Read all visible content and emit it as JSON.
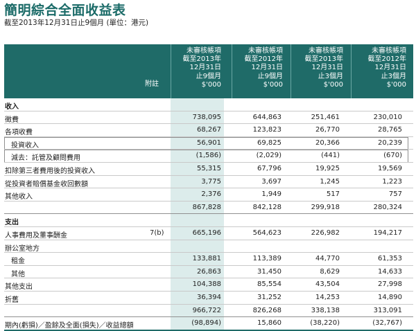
{
  "title": "簡明綜合全面收益表",
  "subtitle": "截至2013年12月31日止9個月 (單位：港元)",
  "header": {
    "note_label": "附註",
    "columns": [
      "未審核帳項\n截至2013年\n12月31日\n止9個月\n$'000",
      "未審核帳項\n截至2012年\n12月31日\n止9個月\n$'000",
      "未審核帳項\n截至2013年\n12月31日\n止3個月\n$'000",
      "未審核帳項\n截至2012年\n12月31日\n止3個月\n$'000"
    ]
  },
  "rows": [
    {
      "label": "收入",
      "note": "",
      "values": [
        "",
        "",
        "",
        ""
      ],
      "type": "section"
    },
    {
      "label": "徵費",
      "note": "",
      "values": [
        "738,095",
        "644,863",
        "251,461",
        "230,010"
      ],
      "type": "normal"
    },
    {
      "label": "各項收費",
      "note": "",
      "values": [
        "68,267",
        "123,823",
        "26,770",
        "28,765"
      ],
      "type": "normal"
    },
    {
      "label": "投資收入",
      "note": "",
      "values": [
        "56,901",
        "69,825",
        "20,366",
        "20,239"
      ],
      "type": "boxed"
    },
    {
      "label": "減去：託管及顧問費用",
      "note": "",
      "values": [
        "(1,586)",
        "(2,029)",
        "(441)",
        "(670)"
      ],
      "type": "boxed"
    },
    {
      "label": "扣除第三者費用後的投資收入",
      "note": "",
      "values": [
        "55,315",
        "67,796",
        "19,925",
        "19,569"
      ],
      "type": "normal"
    },
    {
      "label": "從投資者賠償基金收回數額",
      "note": "",
      "values": [
        "3,775",
        "3,697",
        "1,245",
        "1,223"
      ],
      "type": "normal"
    },
    {
      "label": "其他收入",
      "note": "",
      "values": [
        "2,376",
        "1,949",
        "517",
        "757"
      ],
      "type": "normal"
    },
    {
      "label": "",
      "note": "",
      "values": [
        "867,828",
        "842,128",
        "299,918",
        "280,324"
      ],
      "type": "total"
    },
    {
      "label": "支出",
      "note": "",
      "values": [
        "",
        "",
        "",
        ""
      ],
      "type": "section"
    },
    {
      "label": "人事費用及董事酬金",
      "note": "7(b)",
      "values": [
        "665,196",
        "564,623",
        "226,982",
        "194,217"
      ],
      "type": "normal"
    },
    {
      "label": "辦公室地方",
      "note": "",
      "values": [
        "",
        "",
        "",
        ""
      ],
      "type": "normal"
    },
    {
      "label": "租金",
      "note": "",
      "values": [
        "133,881",
        "113,389",
        "44,770",
        "61,353"
      ],
      "type": "indent"
    },
    {
      "label": "其他",
      "note": "",
      "values": [
        "26,863",
        "31,450",
        "8,629",
        "14,633"
      ],
      "type": "indent"
    },
    {
      "label": "其他支出",
      "note": "",
      "values": [
        "104,388",
        "85,554",
        "43,504",
        "27,998"
      ],
      "type": "normal"
    },
    {
      "label": "折舊",
      "note": "",
      "values": [
        "36,394",
        "31,252",
        "14,253",
        "14,890"
      ],
      "type": "normal"
    },
    {
      "label": "",
      "note": "",
      "values": [
        "966,722",
        "826,268",
        "338,138",
        "313,091"
      ],
      "type": "total"
    },
    {
      "label": "期內(虧損)／盈餘及全面(損失)／收益總額",
      "note": "",
      "values": [
        "(98,894)",
        "15,860",
        "(38,220)",
        "(32,767)"
      ],
      "type": "final"
    }
  ]
}
